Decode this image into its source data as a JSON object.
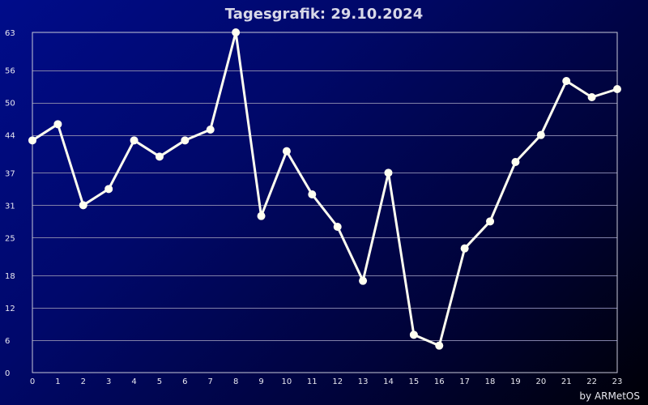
{
  "chart_data": {
    "type": "line",
    "title": "Tagesgrafik: 29.10.2024",
    "xlabel": "",
    "ylabel": "",
    "x": [
      0,
      1,
      2,
      3,
      4,
      5,
      6,
      7,
      8,
      9,
      10,
      11,
      12,
      13,
      14,
      15,
      16,
      17,
      18,
      19,
      20,
      21,
      22,
      23
    ],
    "x_tick_labels": [
      "0",
      "1",
      "2",
      "3",
      "4",
      "5",
      "6",
      "7",
      "8",
      "9",
      "10",
      "11",
      "12",
      "13",
      "14",
      "15",
      "16",
      "17",
      "18",
      "19",
      "20",
      "21",
      "22",
      "23"
    ],
    "values": [
      43,
      46,
      31,
      34,
      43,
      40,
      43,
      45,
      63,
      29,
      41,
      33,
      27,
      17,
      37,
      7,
      5,
      23,
      28,
      39,
      44,
      54,
      51,
      52.5
    ],
    "y_ticks": [
      0,
      6,
      12,
      18,
      25,
      31,
      37,
      44,
      50,
      56,
      63
    ],
    "ylim": [
      0,
      63
    ],
    "xlim": [
      0,
      23
    ],
    "grid": true,
    "legend": "none",
    "credit": "by ARMetOS",
    "colors": {
      "line": "#fffff0",
      "grid": "#8080a8",
      "background_start": "#000c8a",
      "background_end": "#000006"
    }
  }
}
